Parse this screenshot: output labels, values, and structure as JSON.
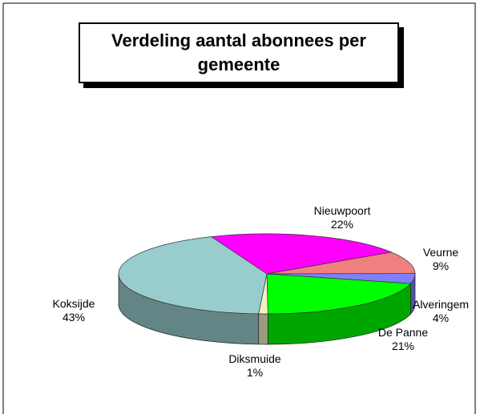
{
  "chart_data": {
    "type": "pie3d",
    "title": "Verdeling aantal abonnees per gemeente",
    "categories": [
      "Nieuwpoort",
      "Veurne",
      "Alveringem",
      "De Panne",
      "Diksmuide",
      "Koksijde"
    ],
    "values": [
      22,
      9,
      4,
      21,
      1,
      43
    ],
    "value_labels": [
      "22%",
      "9%",
      "4%",
      "21%",
      "1%",
      "43%"
    ],
    "colors": [
      "#ff00ff",
      "#f08080",
      "#8080ff",
      "#00ff00",
      "#f0f0c0",
      "#99cccc"
    ]
  }
}
